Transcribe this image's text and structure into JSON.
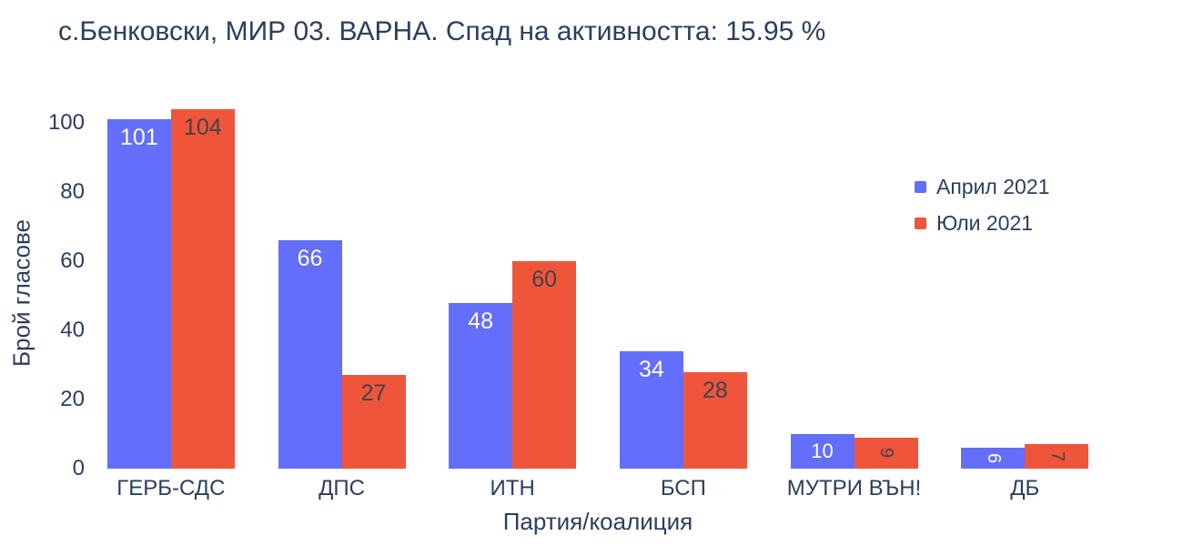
{
  "title": "с.Бенковски, МИР 03. ВАРНА. Спад на активността: 15.95 %",
  "colors": {
    "april_bar": "#636efa",
    "july_bar": "#ef553b",
    "text": "#2a3f5f",
    "label_on_blue": "#ffffff",
    "label_on_red": "#3f4347",
    "background": "#ffffff"
  },
  "legend": {
    "position": "right",
    "items": [
      {
        "label": "Април 2021",
        "color": "#636efa"
      },
      {
        "label": "Юли 2021",
        "color": "#ef553b"
      }
    ]
  },
  "chart_data": {
    "type": "bar",
    "title": "с.Бенковски, МИР 03. ВАРНА. Спад на активността: 15.95 %",
    "categories": [
      "ГЕРБ-СДС",
      "ДПС",
      "ИТН",
      "БСП",
      "МУТРИ ВЪН!",
      "ДБ"
    ],
    "series": [
      {
        "name": "Април 2021",
        "color": "#636efa",
        "label_color": "#ffffff",
        "values": [
          101,
          66,
          48,
          34,
          10,
          6
        ]
      },
      {
        "name": "Юли 2021",
        "color": "#ef553b",
        "label_color": "#3f4347",
        "values": [
          104,
          27,
          60,
          28,
          9,
          7
        ]
      }
    ],
    "xlabel": "Партия/коалиция",
    "ylabel": "Брой гласове",
    "yticks": [
      0,
      20,
      40,
      60,
      80,
      100
    ],
    "ylim": [
      0,
      109
    ],
    "grid": false,
    "bar_mode": "group",
    "legend_position": "right"
  }
}
